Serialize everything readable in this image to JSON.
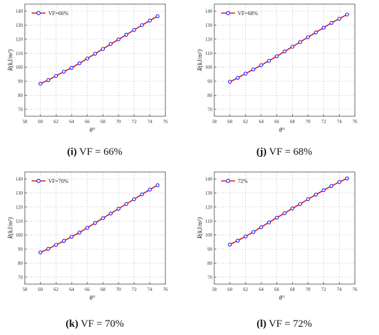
{
  "colors": {
    "line": "#e01010",
    "marker": "#1a1aff",
    "grid": "#c8c8c8",
    "axis": "#444444"
  },
  "chart_data": [
    {
      "type": "line",
      "caption_label": "(i)",
      "caption_text": "VF = 66%",
      "legend_label": "VF=66%",
      "xlabel": "θ°",
      "ylabel": "R(kJ/m²)",
      "xlim": [
        58,
        76
      ],
      "ylim": [
        65,
        145
      ],
      "xticks": [
        58,
        60,
        62,
        64,
        66,
        68,
        70,
        72,
        74,
        76
      ],
      "yticks": [
        70,
        80,
        90,
        100,
        110,
        120,
        130,
        140
      ],
      "grid": true,
      "legend_position": "top-left",
      "x": [
        60,
        61,
        62,
        63,
        64,
        65,
        66,
        67,
        68,
        69,
        70,
        71,
        72,
        73,
        74,
        75
      ],
      "y": [
        88.2,
        90.8,
        93.8,
        96.8,
        99.6,
        102.8,
        106.2,
        109.6,
        113.0,
        116.6,
        119.8,
        123.2,
        126.6,
        130.0,
        133.2,
        136.4
      ]
    },
    {
      "type": "line",
      "caption_label": "(j)",
      "caption_text": "VF = 68%",
      "legend_label": "VF=68%",
      "xlabel": "θ°",
      "ylabel": "R(kJ/m²)",
      "xlim": [
        58,
        76
      ],
      "ylim": [
        65,
        145
      ],
      "xticks": [
        58,
        60,
        62,
        64,
        66,
        68,
        70,
        72,
        74,
        76
      ],
      "yticks": [
        70,
        80,
        90,
        100,
        110,
        120,
        130,
        140
      ],
      "grid": true,
      "legend_position": "top-left",
      "x": [
        60,
        61,
        62,
        63,
        64,
        65,
        66,
        67,
        68,
        69,
        70,
        71,
        72,
        73,
        74,
        75
      ],
      "y": [
        89.6,
        92.4,
        95.4,
        98.4,
        101.4,
        104.6,
        107.8,
        111.2,
        114.6,
        118.0,
        121.4,
        124.8,
        128.2,
        131.6,
        134.6,
        137.6
      ]
    },
    {
      "type": "line",
      "caption_label": "(k)",
      "caption_text": "VF = 70%",
      "legend_label": "VF=70%",
      "xlabel": "θ°",
      "ylabel": "R(kJ/m²)",
      "xlim": [
        58,
        76
      ],
      "ylim": [
        65,
        145
      ],
      "xticks": [
        58,
        60,
        62,
        64,
        66,
        68,
        70,
        72,
        74,
        76
      ],
      "yticks": [
        70,
        80,
        90,
        100,
        110,
        120,
        130,
        140
      ],
      "grid": true,
      "legend_position": "top-left",
      "x": [
        60,
        61,
        62,
        63,
        64,
        65,
        66,
        67,
        68,
        69,
        70,
        71,
        72,
        73,
        74,
        75
      ],
      "y": [
        87.6,
        90.2,
        93.0,
        95.8,
        98.8,
        101.8,
        105.2,
        108.6,
        112.0,
        115.4,
        118.8,
        122.2,
        125.6,
        129.0,
        132.4,
        135.6
      ]
    },
    {
      "type": "line",
      "caption_label": "(l)",
      "caption_text": "VF = 72%",
      "legend_label": "72%",
      "xlabel": "θ°",
      "ylabel": "R(kJ/m²)",
      "xlim": [
        58,
        76
      ],
      "ylim": [
        65,
        145
      ],
      "xticks": [
        58,
        60,
        62,
        64,
        66,
        68,
        70,
        72,
        74,
        76
      ],
      "yticks": [
        70,
        80,
        90,
        100,
        110,
        120,
        130,
        140
      ],
      "grid": true,
      "legend_position": "top-left",
      "x": [
        60,
        61,
        62,
        63,
        64,
        65,
        66,
        67,
        68,
        69,
        70,
        71,
        72,
        73,
        74,
        75
      ],
      "y": [
        93.2,
        96.0,
        99.0,
        102.2,
        105.6,
        109.0,
        112.4,
        115.6,
        119.0,
        122.2,
        125.6,
        128.8,
        132.0,
        135.0,
        137.8,
        140.4
      ]
    }
  ]
}
